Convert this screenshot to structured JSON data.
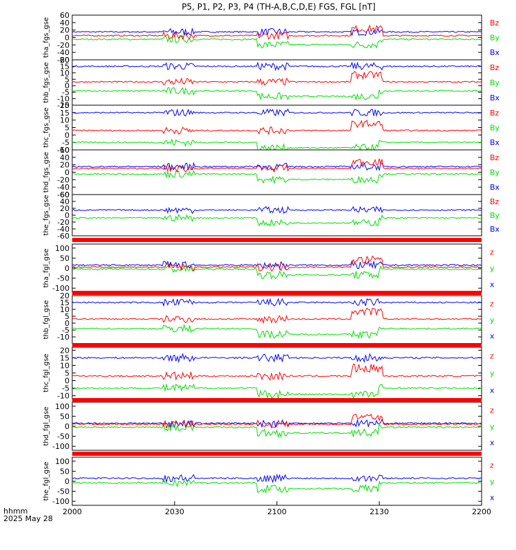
{
  "title": "P5, P1, P2, P3, P4 (TH-A,B,C,D,E) FGS, FGL [nT]",
  "footer": {
    "time_label": "hhmm",
    "date_label": "2025 May 28"
  },
  "colors": {
    "x": "#0000ff",
    "y": "#00dd00",
    "z": "#ff0000",
    "flag": "#ff0000",
    "frame": "#000000"
  },
  "chart_data": {
    "type": "line",
    "x_axis": {
      "range": [
        "2000",
        "2200"
      ],
      "tick_labels": [
        "2000",
        "2030",
        "2100",
        "2130",
        "2200"
      ]
    },
    "panels": [
      {
        "ylabel": "tha_fgs_gse",
        "ylim": [
          -60,
          60
        ],
        "yticks": [
          "60",
          "40",
          "20",
          "0",
          "-20",
          "-40",
          "-60"
        ],
        "legend": [
          "Bz",
          "By",
          "Bx"
        ],
        "levels": {
          "x": 15,
          "y": -5,
          "z": 5
        }
      },
      {
        "ylabel": "thb_fgs_gse",
        "ylim": [
          -15,
          20
        ],
        "yticks": [
          "20",
          "15",
          "10",
          "5",
          "0",
          "-5",
          "-10",
          "-15"
        ],
        "legend": [
          "Bz",
          "By",
          "Bx"
        ],
        "levels": {
          "x": 15,
          "y": -4,
          "z": 3
        }
      },
      {
        "ylabel": "thc_fgs_gse",
        "ylim": [
          -10,
          20
        ],
        "yticks": [
          "20",
          "15",
          "10",
          "5",
          "0",
          "-5",
          "-10"
        ],
        "legend": [
          "Bz",
          "By",
          "Bx"
        ],
        "levels": {
          "x": 15,
          "y": -5,
          "z": 3
        }
      },
      {
        "ylabel": "thd_fgs_gse",
        "ylim": [
          -60,
          60
        ],
        "yticks": [
          "60",
          "40",
          "20",
          "0",
          "-20",
          "-40",
          "-60"
        ],
        "legend": [
          "Bz",
          "By",
          "Bx"
        ],
        "levels": {
          "x": 15,
          "y": -5,
          "z": 10
        }
      },
      {
        "ylabel": "the_fgs_gse",
        "ylim": [
          -60,
          60
        ],
        "yticks": [
          "60",
          "40",
          "20",
          "0",
          "-20",
          "-40",
          "-60"
        ],
        "legend": [
          "Bz",
          "By",
          "Bx"
        ],
        "levels": {
          "x": 15,
          "y": -8,
          "z": null
        }
      },
      {
        "ylabel": "tha_fgl_gse",
        "ylim": [
          -120,
          120
        ],
        "yticks": [
          "100",
          "50",
          "0",
          "-50",
          "-100"
        ],
        "legend": [
          "z",
          "y",
          "x"
        ],
        "levels": {
          "x": 15,
          "y": -5,
          "z": 5
        }
      },
      {
        "ylabel": "thb_fgl_gse",
        "ylim": [
          -15,
          20
        ],
        "yticks": [
          "20",
          "15",
          "10",
          "5",
          "0",
          "-5",
          "-10"
        ],
        "legend": [
          "z",
          "y",
          "x"
        ],
        "levels": {
          "x": 15,
          "y": -4,
          "z": 3
        }
      },
      {
        "ylabel": "thc_fgl_gse",
        "ylim": [
          -12,
          22
        ],
        "yticks": [
          "20",
          "15",
          "10",
          "5",
          "0",
          "-5",
          "-10"
        ],
        "legend": [
          "z",
          "y",
          "x"
        ],
        "levels": {
          "x": 15,
          "y": -5,
          "z": 3
        }
      },
      {
        "ylabel": "thd_fgl_gse",
        "ylim": [
          -120,
          120
        ],
        "yticks": [
          "100",
          "50",
          "0",
          "-50",
          "-100"
        ],
        "legend": [
          "z",
          "y",
          "x"
        ],
        "levels": {
          "x": 15,
          "y": -5,
          "z": 10
        }
      },
      {
        "ylabel": "the_fgl_gse",
        "ylim": [
          -120,
          120
        ],
        "yticks": [
          "100",
          "50",
          "0",
          "-50",
          "-100"
        ],
        "legend": [
          "z",
          "y",
          "x"
        ],
        "levels": {
          "x": 15,
          "y": -8,
          "z": null
        }
      }
    ]
  }
}
